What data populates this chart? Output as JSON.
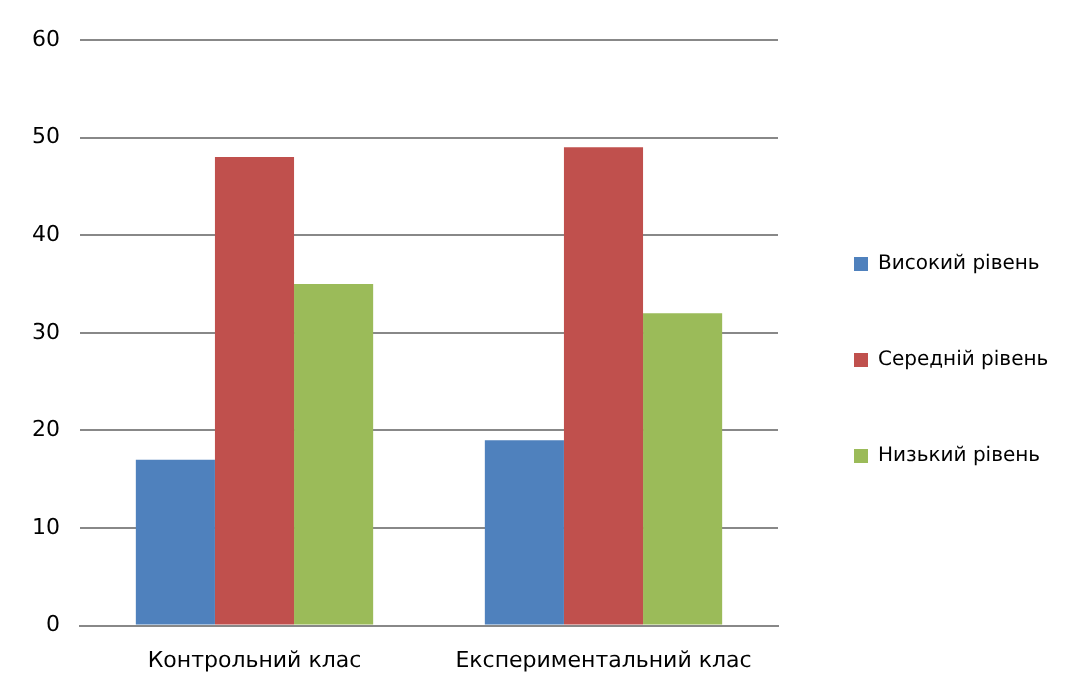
{
  "chart_data": {
    "type": "bar",
    "categories": [
      "Контрольний клас",
      "Експериментальний клас"
    ],
    "series": [
      {
        "name": "Високий рівень",
        "color": "#4f81bd",
        "values": [
          17,
          19
        ]
      },
      {
        "name": "Середній рівень",
        "color": "#c0504d",
        "values": [
          48,
          49
        ]
      },
      {
        "name": "Низький рівень",
        "color": "#9bbb59",
        "values": [
          35,
          32
        ]
      }
    ],
    "ylim": [
      0,
      60
    ],
    "yticks": [
      0,
      10,
      20,
      30,
      40,
      50,
      60
    ],
    "grid": "y",
    "legend": "right"
  }
}
